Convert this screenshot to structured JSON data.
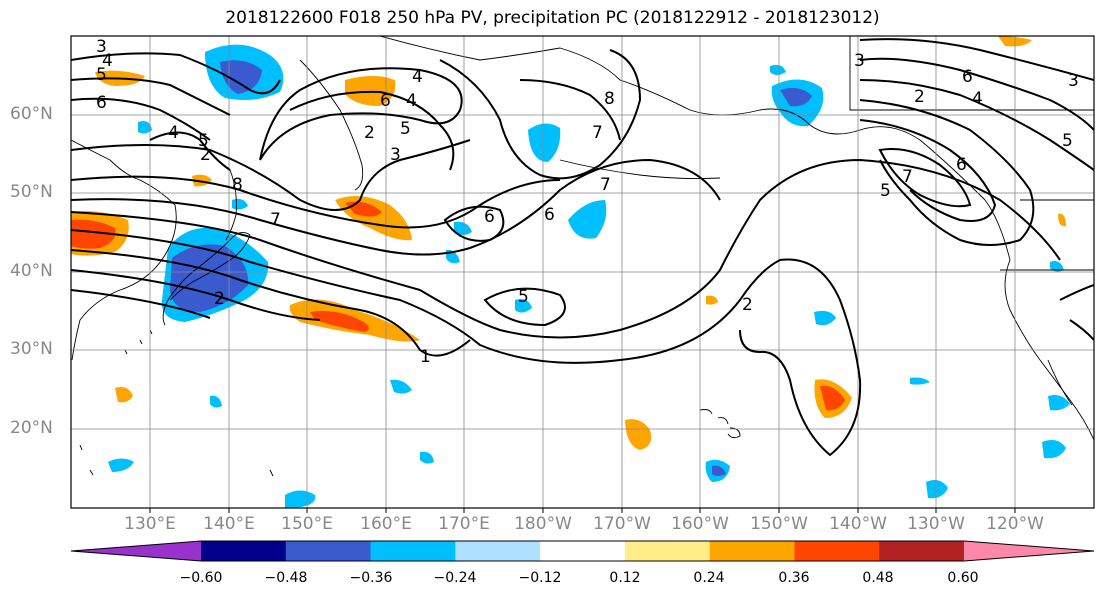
{
  "title": "2018122600 F018 250 hPa PV, precipitation PC (2018122912 - 2018123012)",
  "lat_labels": [
    "60°N",
    "50°N",
    "40°N",
    "30°N",
    "20°N"
  ],
  "lon_labels": [
    "130°E",
    "140°E",
    "150°E",
    "160°E",
    "170°E",
    "180°W",
    "170°W",
    "160°W",
    "150°W",
    "140°W",
    "130°W",
    "120°W"
  ],
  "contour_labels": [
    "3",
    "4",
    "5",
    "6",
    "4",
    "5",
    "2",
    "4",
    "6",
    "8",
    "7",
    "4",
    "2",
    "3",
    "5",
    "7",
    "6",
    "6",
    "8",
    "7",
    "5",
    "1",
    "2",
    "3",
    "4",
    "5",
    "6",
    "7",
    "5",
    "2",
    "3",
    "2",
    "6"
  ],
  "colorbar": {
    "ticks": [
      "−0.60",
      "−0.48",
      "−0.36",
      "−0.24",
      "−0.12",
      "0.12",
      "0.24",
      "0.36",
      "0.48",
      "0.60"
    ],
    "colors": [
      "#9932cc",
      "#00008b",
      "#3a5bd0",
      "#00bfff",
      "#b0e0ff",
      "#ffffff",
      "#ffee88",
      "#ffa500",
      "#ff4500",
      "#b22222",
      "#ff88aa"
    ]
  },
  "colors": {
    "land_outline": "#000000",
    "grid": "#888888",
    "frame": "#000000"
  }
}
